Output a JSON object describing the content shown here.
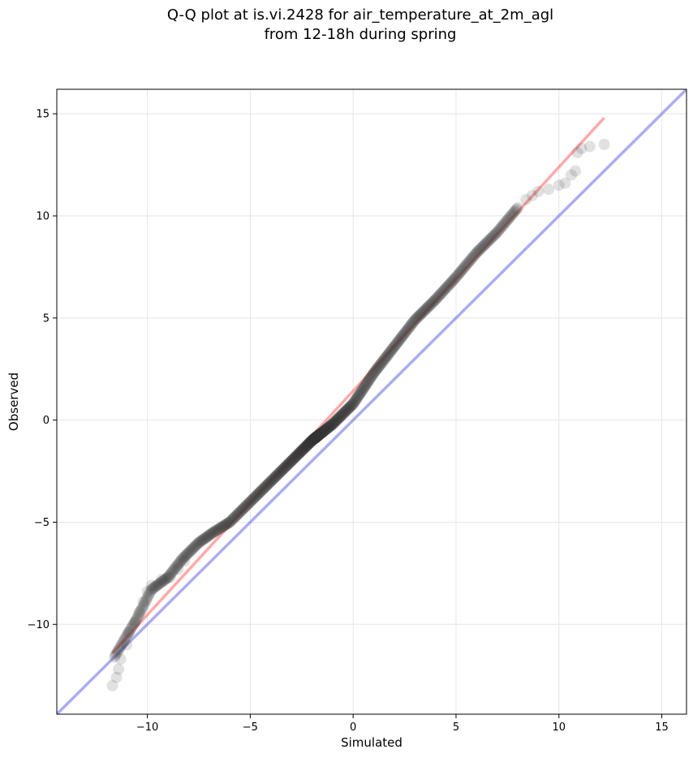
{
  "chart_data": {
    "type": "scatter",
    "title_line1": "Q-Q plot at is.vi.2428 for air_temperature_at_2m_agl",
    "title_line2": "from 12-18h during spring",
    "xlabel": "Simulated",
    "ylabel": "Observed",
    "xlim": [
      -14.4,
      16.2
    ],
    "ylim": [
      -14.4,
      16.2
    ],
    "xticks": [
      -10,
      -5,
      0,
      5,
      10,
      15
    ],
    "yticks": [
      -10,
      -5,
      0,
      5,
      10,
      15
    ],
    "xtick_labels": [
      "−10",
      "−5",
      "0",
      "5",
      "10",
      "15"
    ],
    "ytick_labels": [
      "−10",
      "−5",
      "0",
      "5",
      "10",
      "15"
    ],
    "grid": true,
    "colors": {
      "points": "#333333",
      "fit_line": "#ff5555",
      "identity_line": "#5a5ae6",
      "grid": "#e6e6e6"
    },
    "fit_line": {
      "x": [
        -11.7,
        12.2
      ],
      "y": [
        -11.4,
        14.8
      ]
    },
    "identity_line": {
      "x": [
        -14.4,
        16.2
      ],
      "y": [
        -14.4,
        16.2
      ]
    },
    "quantile_curve": {
      "x": [
        -11.6,
        -11.2,
        -10.5,
        -9.8,
        -9.0,
        -8.3,
        -7.5,
        -6.8,
        -6.0,
        -5.0,
        -4.0,
        -3.0,
        -2.0,
        -1.0,
        0.0,
        1.0,
        2.0,
        3.0,
        4.0,
        5.0,
        6.0,
        7.0,
        8.0
      ],
      "y": [
        -11.6,
        -10.9,
        -9.7,
        -8.3,
        -7.7,
        -6.8,
        -6.0,
        -5.5,
        -5.0,
        -4.0,
        -3.0,
        -2.0,
        -1.0,
        -0.2,
        0.8,
        2.3,
        3.6,
        4.9,
        5.9,
        7.0,
        8.2,
        9.2,
        10.4
      ],
      "n_points": 650
    },
    "outlier_points": [
      {
        "x": -11.7,
        "y": -13.0
      },
      {
        "x": -11.5,
        "y": -12.6
      },
      {
        "x": -11.4,
        "y": -12.2
      },
      {
        "x": -11.3,
        "y": -11.7
      },
      {
        "x": -11.0,
        "y": -11.0
      },
      {
        "x": -10.9,
        "y": -10.4
      },
      {
        "x": -10.6,
        "y": -9.9
      },
      {
        "x": -10.4,
        "y": -9.4
      },
      {
        "x": -10.2,
        "y": -8.9
      },
      {
        "x": -10.0,
        "y": -8.4
      },
      {
        "x": -9.8,
        "y": -8.1
      },
      {
        "x": -9.3,
        "y": -7.8
      },
      {
        "x": -8.9,
        "y": -7.7
      },
      {
        "x": -8.5,
        "y": -7.3
      },
      {
        "x": -8.2,
        "y": -6.9
      },
      {
        "x": 8.4,
        "y": 10.8
      },
      {
        "x": 8.7,
        "y": 11.0
      },
      {
        "x": 9.0,
        "y": 11.2
      },
      {
        "x": 9.5,
        "y": 11.3
      },
      {
        "x": 10.0,
        "y": 11.5
      },
      {
        "x": 10.3,
        "y": 11.6
      },
      {
        "x": 10.6,
        "y": 12.0
      },
      {
        "x": 10.8,
        "y": 12.2
      },
      {
        "x": 10.9,
        "y": 13.1
      },
      {
        "x": 11.1,
        "y": 13.3
      },
      {
        "x": 11.5,
        "y": 13.4
      },
      {
        "x": 12.2,
        "y": 13.5
      }
    ]
  }
}
